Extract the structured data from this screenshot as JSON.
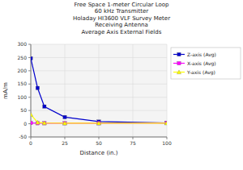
{
  "chart_data": {
    "type": "line",
    "title": "Free Space 1-meter Circular Loop\n60 kHz Transmitter\nHoladay HI3600 VLF Survey Meter\nReceiving Antenna\nAverage Axis External Fields",
    "x_label": "Distance (in.)",
    "y_label": "mA/m",
    "x": [
      0,
      5,
      10,
      25,
      50,
      100
    ],
    "series": [
      {
        "name": "Z-axis (Avg)",
        "color": "#0000cc",
        "marker": "square",
        "values": [
          247,
          135,
          65,
          25,
          8,
          3
        ]
      },
      {
        "name": "X-axis (Avg)",
        "color": "#ff00ff",
        "marker": "square",
        "values": [
          3,
          2,
          2,
          2,
          2,
          3
        ]
      },
      {
        "name": "Y-axis (Avg)",
        "color": "#ffff00",
        "marker": "triangle",
        "values": [
          35,
          5,
          3,
          2,
          2,
          2
        ]
      }
    ],
    "xlim": [
      0,
      100
    ],
    "ylim": [
      -50,
      300
    ],
    "xticks": [
      0,
      25,
      50,
      75,
      100
    ],
    "yticks": [
      -50,
      0,
      50,
      100,
      150,
      200,
      250,
      300
    ],
    "grid": true,
    "legend": "right"
  }
}
